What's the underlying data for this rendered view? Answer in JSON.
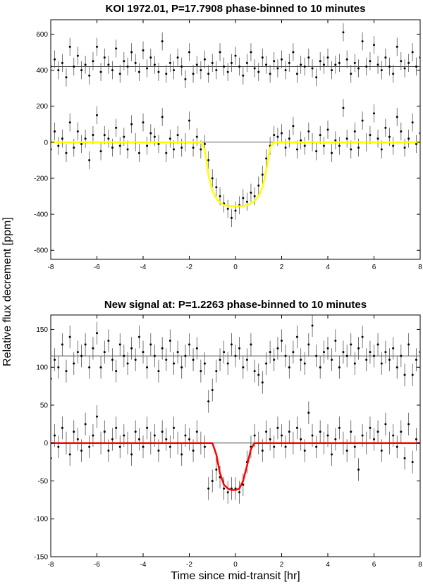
{
  "figure": {
    "ylabel": "Relative flux decrement [ppm]"
  },
  "chart_data": [
    {
      "type": "errorbar",
      "title": "KOI 1972.01, P=17.7908 phase-binned to 10 minutes",
      "xlim": [
        -8,
        8
      ],
      "xticks": [
        -8,
        -6,
        -4,
        -2,
        0,
        2,
        4,
        6,
        8
      ],
      "ylim": [
        -650,
        680
      ],
      "yticks": [
        -600,
        -400,
        -200,
        0,
        200,
        400,
        600
      ],
      "hlines": [
        0,
        420
      ],
      "x": [
        -8,
        -7.83,
        -7.67,
        -7.5,
        -7.33,
        -7.17,
        -7,
        -6.83,
        -6.67,
        -6.5,
        -6.33,
        -6.17,
        -6,
        -5.83,
        -5.67,
        -5.5,
        -5.33,
        -5.17,
        -5,
        -4.83,
        -4.67,
        -4.5,
        -4.33,
        -4.17,
        -4,
        -3.83,
        -3.67,
        -3.5,
        -3.33,
        -3.17,
        -3,
        -2.83,
        -2.67,
        -2.5,
        -2.33,
        -2.17,
        -2,
        -1.83,
        -1.67,
        -1.5,
        -1.33,
        -1.17,
        -1,
        -0.83,
        -0.67,
        -0.5,
        -0.33,
        -0.17,
        0,
        0.17,
        0.33,
        0.5,
        0.67,
        0.83,
        1,
        1.17,
        1.33,
        1.5,
        1.67,
        1.83,
        2,
        2.17,
        2.33,
        2.5,
        2.67,
        2.83,
        3,
        3.17,
        3.33,
        3.5,
        3.67,
        3.83,
        4,
        4.17,
        4.33,
        4.5,
        4.67,
        4.83,
        5,
        5.17,
        5.33,
        5.5,
        5.67,
        5.83,
        6,
        6.17,
        6.33,
        6.5,
        6.67,
        6.83,
        7,
        7.17,
        7.33,
        7.5,
        7.67,
        7.83,
        8
      ],
      "series": [
        {
          "color": "#000000",
          "style": "errorbar",
          "error": 50,
          "values": [
            420,
            460,
            400,
            440,
            360,
            530,
            420,
            480,
            400,
            430,
            370,
            450,
            530,
            390,
            470,
            430,
            400,
            520,
            380,
            450,
            420,
            500,
            440,
            390,
            510,
            410,
            470,
            430,
            390,
            560,
            380,
            440,
            400,
            470,
            420,
            350,
            500,
            380,
            430,
            400,
            460,
            380,
            440,
            400,
            500,
            420,
            390,
            440,
            480,
            420,
            370,
            440,
            500,
            410,
            390,
            470,
            430,
            380,
            450,
            410,
            460,
            400,
            440,
            500,
            380,
            430,
            420,
            470,
            410,
            360,
            450,
            430,
            470,
            400,
            430,
            440,
            610,
            460,
            380,
            440,
            410,
            560,
            420,
            450,
            540,
            430,
            400,
            470,
            420,
            380,
            530,
            450,
            410,
            440,
            500,
            420,
            470
          ]
        },
        {
          "color": "#000000",
          "style": "errorbar",
          "error": 50,
          "values": [
            -40,
            60,
            -20,
            20,
            -60,
            110,
            -30,
            60,
            -10,
            20,
            -100,
            40,
            150,
            -50,
            40,
            20,
            -30,
            80,
            -20,
            30,
            -40,
            100,
            0,
            -60,
            110,
            -20,
            50,
            30,
            -10,
            140,
            -60,
            20,
            -40,
            40,
            -30,
            0,
            120,
            -30,
            30,
            -40,
            -10,
            -100,
            -200,
            -250,
            -300,
            -340,
            -370,
            -420,
            -380,
            -350,
            -310,
            -330,
            -280,
            -300,
            -240,
            -180,
            -90,
            -20,
            40,
            30,
            50,
            -30,
            20,
            90,
            -40,
            10,
            -20,
            60,
            0,
            -50,
            40,
            -20,
            70,
            -60,
            10,
            -20,
            190,
            20,
            -40,
            60,
            -30,
            120,
            0,
            40,
            160,
            20,
            -40,
            80,
            30,
            -20,
            140,
            60,
            -30,
            20,
            110,
            -10,
            50
          ]
        },
        {
          "color": "#ffff00",
          "style": "line",
          "values": [
            0,
            0,
            0,
            0,
            0,
            0,
            0,
            0,
            0,
            0,
            0,
            0,
            0,
            0,
            0,
            0,
            0,
            0,
            0,
            0,
            0,
            0,
            0,
            0,
            0,
            0,
            0,
            0,
            0,
            0,
            0,
            0,
            0,
            0,
            0,
            0,
            0,
            0,
            0,
            0,
            -40,
            -180,
            -270,
            -310,
            -335,
            -348,
            -353,
            -355,
            -355,
            -355,
            -353,
            -348,
            -340,
            -325,
            -300,
            -250,
            -160,
            -30,
            0,
            0,
            0,
            0,
            0,
            0,
            0,
            0,
            0,
            0,
            0,
            0,
            0,
            0,
            0,
            0,
            0,
            0,
            0,
            0,
            0,
            0,
            0,
            0,
            0,
            0,
            0,
            0,
            0,
            0,
            0,
            0,
            0,
            0,
            0,
            0,
            0,
            0,
            0
          ]
        }
      ]
    },
    {
      "type": "errorbar",
      "title": "New signal at: P=1.2263 phase-binned to 10 minutes",
      "xlabel": "Time since mid-transit [hr]",
      "xlim": [
        -8,
        8
      ],
      "xticks": [
        -8,
        -6,
        -4,
        -2,
        0,
        2,
        4,
        6,
        8
      ],
      "ylim": [
        -150,
        169
      ],
      "yticks": [
        -150,
        -100,
        -50,
        0,
        50,
        100,
        150
      ],
      "hlines": [
        0,
        115
      ],
      "x": [
        -8,
        -7.83,
        -7.67,
        -7.5,
        -7.33,
        -7.17,
        -7,
        -6.83,
        -6.67,
        -6.5,
        -6.33,
        -6.17,
        -6,
        -5.83,
        -5.67,
        -5.5,
        -5.33,
        -5.17,
        -5,
        -4.83,
        -4.67,
        -4.5,
        -4.33,
        -4.17,
        -4,
        -3.83,
        -3.67,
        -3.5,
        -3.33,
        -3.17,
        -3,
        -2.83,
        -2.67,
        -2.5,
        -2.33,
        -2.17,
        -2,
        -1.83,
        -1.67,
        -1.5,
        -1.33,
        -1.17,
        -1,
        -0.83,
        -0.67,
        -0.5,
        -0.33,
        -0.17,
        0,
        0.17,
        0.33,
        0.5,
        0.67,
        0.83,
        1,
        1.17,
        1.33,
        1.5,
        1.67,
        1.83,
        2,
        2.17,
        2.33,
        2.5,
        2.67,
        2.83,
        3,
        3.17,
        3.33,
        3.5,
        3.67,
        3.83,
        4,
        4.17,
        4.33,
        4.5,
        4.67,
        4.83,
        5,
        5.17,
        5.33,
        5.5,
        5.67,
        5.83,
        6,
        6.17,
        6.33,
        6.5,
        6.67,
        6.83,
        7,
        7.17,
        7.33,
        7.5,
        7.67,
        7.83,
        8
      ],
      "series": [
        {
          "color": "#000000",
          "style": "errorbar",
          "error": 15,
          "values": [
            85,
            110,
            100,
            130,
            95,
            140,
            105,
            120,
            115,
            130,
            100,
            125,
            145,
            100,
            120,
            135,
            110,
            95,
            130,
            115,
            105,
            125,
            110,
            140,
            120,
            100,
            130,
            115,
            95,
            125,
            110,
            135,
            105,
            120,
            100,
            115,
            130,
            110,
            125,
            95,
            105,
            55,
            70,
            95,
            110,
            120,
            105,
            130,
            115,
            125,
            100,
            110,
            130,
            95,
            90,
            80,
            105,
            120,
            110,
            125,
            135,
            115,
            100,
            120,
            140,
            110,
            105,
            130,
            155,
            115,
            100,
            120,
            125,
            110,
            135,
            100,
            120,
            115,
            130,
            105,
            125,
            140,
            110,
            120,
            115,
            130,
            105,
            120,
            110,
            125,
            100,
            115,
            90,
            130,
            90,
            110,
            120
          ]
        },
        {
          "color": "#000000",
          "style": "errorbar",
          "error": 15,
          "values": [
            -20,
            10,
            -5,
            20,
            0,
            -15,
            15,
            5,
            -10,
            25,
            -5,
            10,
            35,
            0,
            15,
            -10,
            5,
            20,
            -5,
            10,
            0,
            -15,
            15,
            5,
            -5,
            20,
            0,
            10,
            -10,
            15,
            5,
            -5,
            20,
            0,
            -15,
            10,
            5,
            -10,
            15,
            0,
            -5,
            -60,
            -50,
            -35,
            -45,
            -60,
            -65,
            -60,
            -60,
            -65,
            -55,
            -25,
            -5,
            10,
            0,
            -10,
            15,
            5,
            -5,
            20,
            10,
            -5,
            15,
            0,
            20,
            5,
            -10,
            40,
            10,
            -5,
            15,
            0,
            10,
            -15,
            5,
            20,
            0,
            -10,
            15,
            -5,
            -35,
            10,
            0,
            20,
            5,
            15,
            -10,
            25,
            0,
            10,
            -5,
            15,
            -20,
            25,
            -25,
            5,
            0
          ]
        },
        {
          "color": "#ff0000",
          "style": "line",
          "values": [
            0,
            0,
            0,
            0,
            0,
            0,
            0,
            0,
            0,
            0,
            0,
            0,
            0,
            0,
            0,
            0,
            0,
            0,
            0,
            0,
            0,
            0,
            0,
            0,
            0,
            0,
            0,
            0,
            0,
            0,
            0,
            0,
            0,
            0,
            0,
            0,
            0,
            0,
            0,
            0,
            0,
            0,
            0,
            -15,
            -40,
            -55,
            -60,
            -62,
            -62,
            -60,
            -50,
            -30,
            -8,
            0,
            0,
            0,
            0,
            0,
            0,
            0,
            0,
            0,
            0,
            0,
            0,
            0,
            0,
            0,
            0,
            0,
            0,
            0,
            0,
            0,
            0,
            0,
            0,
            0,
            0,
            0,
            0,
            0,
            0,
            0,
            0,
            0,
            0,
            0,
            0,
            0,
            0,
            0,
            0,
            0,
            0,
            0,
            0
          ]
        }
      ]
    }
  ]
}
